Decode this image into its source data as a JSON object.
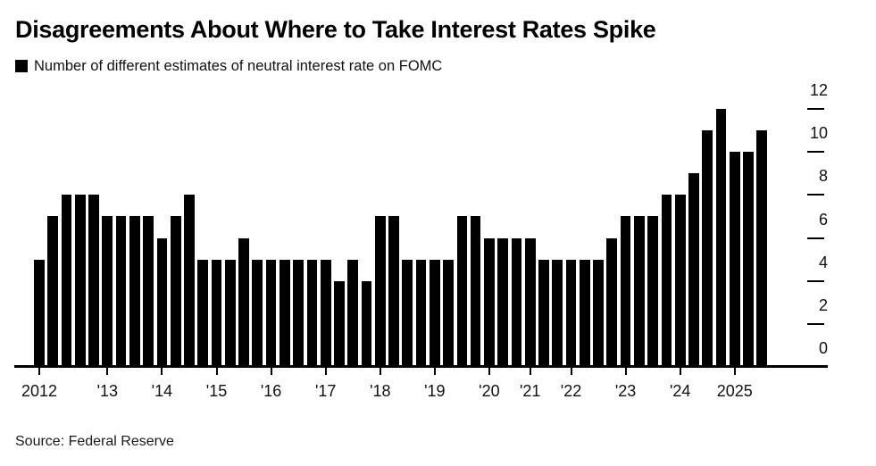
{
  "title": "Disagreements About Where to Take Interest Rates Spike",
  "legend_label": "Number of different estimates of neutral interest rate on FOMC",
  "source": "Source: Federal Reserve",
  "colors": {
    "bar": "#000000",
    "axis": "#000000",
    "title_text": "#000000",
    "label_text": "#111111"
  },
  "chart_data": {
    "type": "bar",
    "title": "Disagreements About Where to Take Interest Rates Spike",
    "series_label": "Number of different estimates of neutral interest rate on FOMC",
    "source": "Source: Federal Reserve",
    "ylim": [
      0,
      12
    ],
    "y_ticks": [
      0,
      2,
      4,
      6,
      8,
      10,
      12
    ],
    "y_axis_side": "right",
    "grid": false,
    "legend_position": "top-left",
    "groups": [
      {
        "label": "2012",
        "values": [
          5,
          7,
          8,
          8,
          8
        ]
      },
      {
        "label": "'13",
        "values": [
          7,
          7,
          7,
          7
        ]
      },
      {
        "label": "'14",
        "values": [
          6,
          7,
          8,
          5
        ]
      },
      {
        "label": "'15",
        "values": [
          5,
          5,
          6,
          5
        ]
      },
      {
        "label": "'16",
        "values": [
          5,
          5,
          5,
          5
        ]
      },
      {
        "label": "'17",
        "values": [
          5,
          4,
          5,
          4
        ]
      },
      {
        "label": "'18",
        "values": [
          7,
          7,
          5,
          5
        ]
      },
      {
        "label": "'19",
        "values": [
          5,
          5,
          7,
          7
        ]
      },
      {
        "label": "'20",
        "values": [
          6,
          6,
          6
        ]
      },
      {
        "label": "'21",
        "values": [
          6,
          5,
          5
        ]
      },
      {
        "label": "'22",
        "values": [
          5,
          5,
          5,
          6
        ]
      },
      {
        "label": "'23",
        "values": [
          7,
          7,
          7,
          8
        ]
      },
      {
        "label": "'24",
        "values": [
          8,
          9,
          11,
          12
        ]
      },
      {
        "label": "2025",
        "values": [
          10,
          10,
          11
        ]
      }
    ]
  }
}
